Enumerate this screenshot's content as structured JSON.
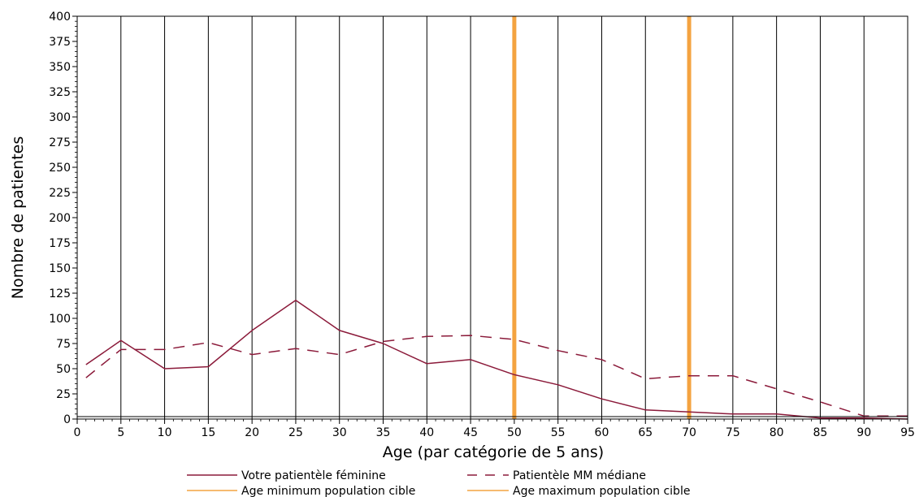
{
  "chart_data": {
    "type": "line",
    "title": "",
    "xlabel": "Age (par catégorie de 5 ans)",
    "ylabel": "Nombre de patientes",
    "xlim": [
      0,
      95
    ],
    "ylim": [
      0,
      400
    ],
    "xticks": [
      0,
      5,
      10,
      15,
      20,
      25,
      30,
      35,
      40,
      45,
      50,
      55,
      60,
      65,
      70,
      75,
      80,
      85,
      90,
      95
    ],
    "yticks": [
      0,
      25,
      50,
      75,
      100,
      125,
      150,
      175,
      200,
      225,
      250,
      275,
      300,
      325,
      350,
      375,
      400
    ],
    "grid": "vertical",
    "legend_position": "bottom",
    "series": [
      {
        "name": "Votre patientèle féminine",
        "style": "solid",
        "color": "#8b1a3a",
        "x": [
          1,
          5,
          10,
          15,
          20,
          25,
          30,
          35,
          40,
          45,
          50,
          55,
          60,
          65,
          70,
          75,
          80,
          85,
          90,
          95
        ],
        "y": [
          54,
          78,
          50,
          52,
          88,
          118,
          88,
          75,
          55,
          59,
          44,
          34,
          20,
          9,
          7,
          5,
          5,
          1,
          1,
          0
        ]
      },
      {
        "name": "Patientèle MM médiane",
        "style": "dashed",
        "color": "#8b1a3a",
        "x": [
          1,
          5,
          10,
          15,
          20,
          25,
          30,
          35,
          40,
          45,
          50,
          55,
          60,
          65,
          70,
          75,
          80,
          85,
          90,
          95
        ],
        "y": [
          41,
          69,
          69,
          76,
          64,
          70,
          64,
          77,
          82,
          83,
          79,
          68,
          59,
          40,
          43,
          43,
          30,
          17,
          3,
          3
        ]
      }
    ],
    "reference_lines": [
      {
        "name": "Age minimum population cible",
        "x": 50,
        "color": "#f4a340"
      },
      {
        "name": "Age maximum population cible",
        "x": 70,
        "color": "#f4a340"
      }
    ]
  }
}
